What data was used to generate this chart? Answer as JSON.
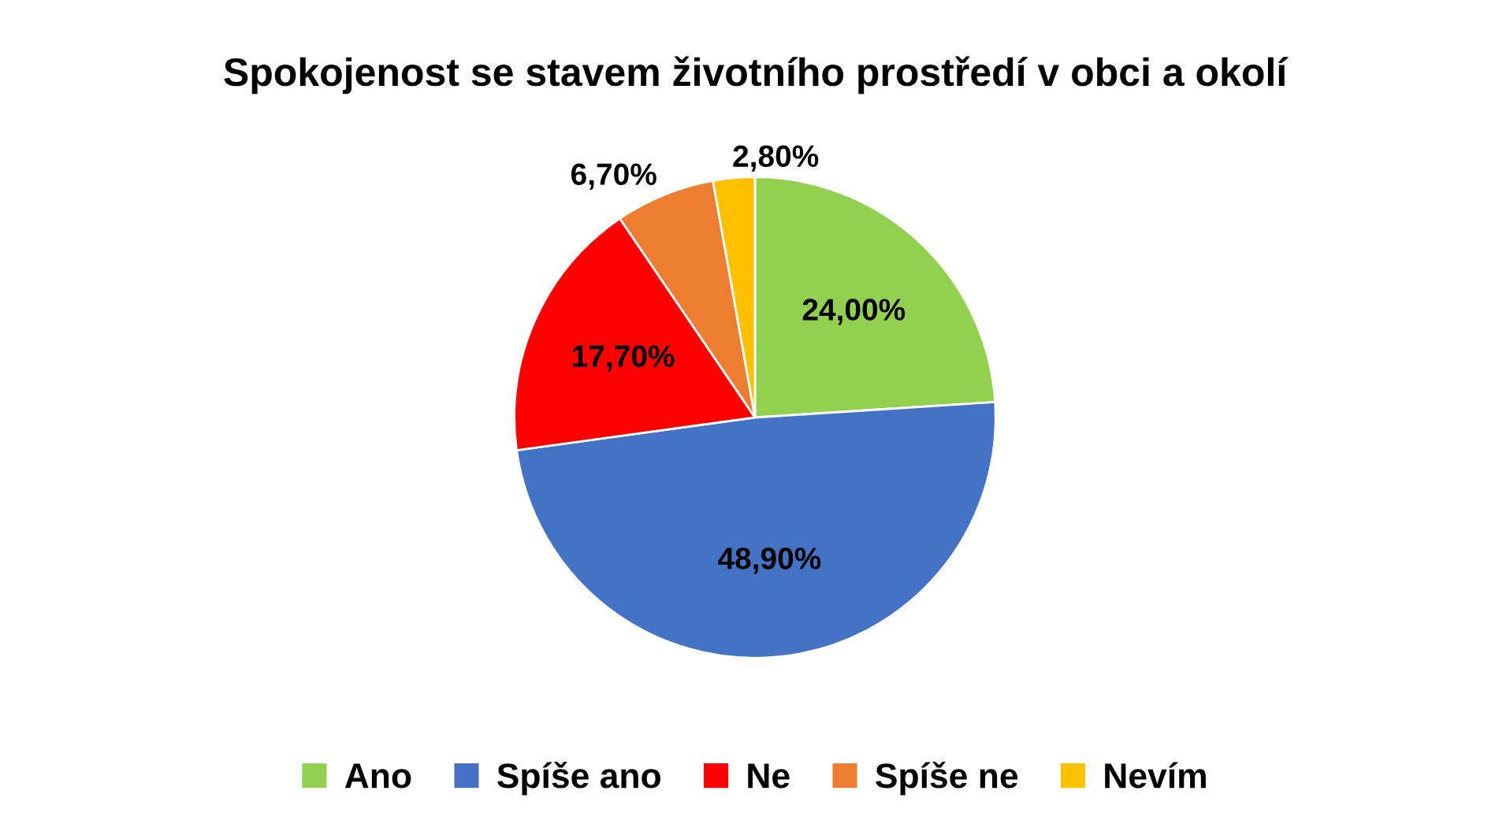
{
  "chart_data": {
    "type": "pie",
    "title": "Spokojenost se stavem životního prostředí v obci a okolí",
    "categories": [
      "Ano",
      "Spíše ano",
      "Ne",
      "Spíše ne",
      "Nevím"
    ],
    "values": [
      24.0,
      48.9,
      17.7,
      6.7,
      2.8
    ],
    "value_labels": [
      "24,00%",
      "48,90%",
      "17,70%",
      "6,70%",
      "2,80%"
    ],
    "colors": [
      "#92d050",
      "#4472c4",
      "#ff0000",
      "#ed7d31",
      "#ffc000"
    ],
    "legend": "bottom"
  }
}
